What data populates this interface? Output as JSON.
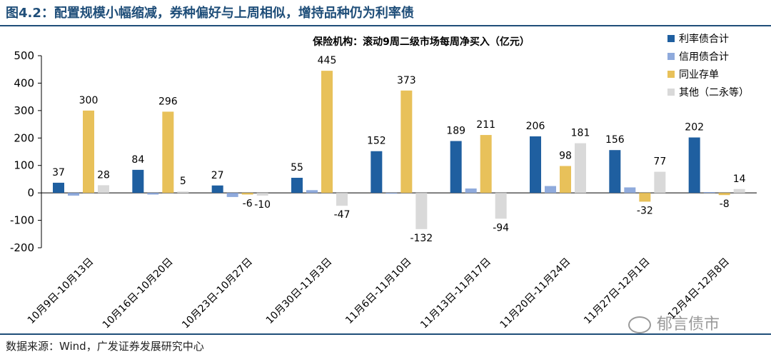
{
  "figure": {
    "title": "图4.2：配置规模小幅缩减，券种偏好与上周相似，增持品种仍为利率债",
    "source": "数据来源：Wind，广发证券发展研究中心",
    "watermark": "郁言债市"
  },
  "chart_data": {
    "type": "bar",
    "title": "保险机构：滚动9周二级市场每周净买入（亿元）",
    "categories": [
      "10月9日-10月13日",
      "10月16日-10月20日",
      "10月23日-10月27日",
      "10月30日-11月3日",
      "11月6日-11月10日",
      "11月13日-11月17日",
      "11月20日-11月24日",
      "11月27日-12月1日",
      "12月4日-12月8日"
    ],
    "series": [
      {
        "name": "利率债合计",
        "color": "#1f5fa0",
        "values": [
          37,
          84,
          27,
          55,
          152,
          189,
          206,
          156,
          202
        ],
        "labels": [
          "37",
          "84",
          "27",
          "55",
          "152",
          "189",
          "206",
          "156",
          "202"
        ]
      },
      {
        "name": "信用债合计",
        "color": "#8faadc",
        "values": [
          -10,
          -6,
          -15,
          10,
          -3,
          16,
          25,
          20,
          3
        ],
        "labels": [
          "",
          "",
          "",
          "",
          "",
          "",
          "",
          "",
          ""
        ]
      },
      {
        "name": "同业存单",
        "color": "#e8c15a",
        "values": [
          300,
          296,
          -6,
          445,
          373,
          211,
          98,
          -32,
          -8
        ],
        "labels": [
          "300",
          "296",
          "-6",
          "445",
          "373",
          "211",
          "98",
          "-32",
          "-8"
        ]
      },
      {
        "name": "其他（二永等）",
        "color": "#d9d9d9",
        "values": [
          28,
          5,
          -10,
          -47,
          -132,
          -94,
          181,
          77,
          14
        ],
        "labels": [
          "28",
          "5",
          "-10",
          "-47",
          "-132",
          "-94",
          "181",
          "77",
          "14"
        ]
      }
    ],
    "ylim": [
      -200,
      500
    ],
    "yticks": [
      -200,
      -100,
      0,
      100,
      200,
      300,
      400,
      500
    ],
    "legend_position": "top-right",
    "grid": false
  }
}
